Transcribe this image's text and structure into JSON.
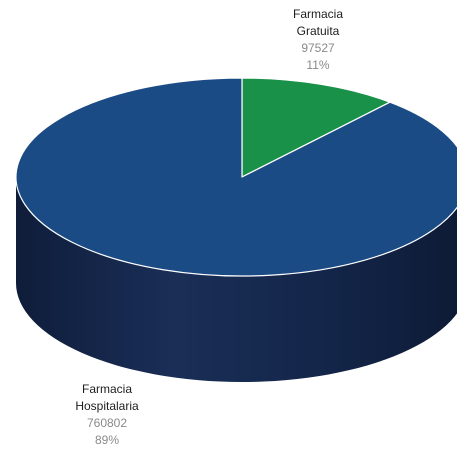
{
  "header": {
    "title_fragment": ""
  },
  "chart_data": {
    "type": "pie",
    "style": "3d",
    "title": "",
    "legend": "none",
    "series": [
      {
        "values": [
          97527,
          760802
        ]
      }
    ],
    "categories": [
      "Farmacia Gratuita",
      "Farmacia Hospitalaria"
    ],
    "slices": [
      {
        "label_line1": "Farmacia",
        "label_line2": "Gratuita",
        "value": 97527,
        "value_text": "97527",
        "percent_text": "11%",
        "color": "#1a9148"
      },
      {
        "label_line1": "Farmacia",
        "label_line2": "Hospitalaria",
        "value": 760802,
        "value_text": "760802",
        "percent_text": "89%",
        "color": "#1b4b84"
      }
    ],
    "side_color": "#13264a"
  }
}
